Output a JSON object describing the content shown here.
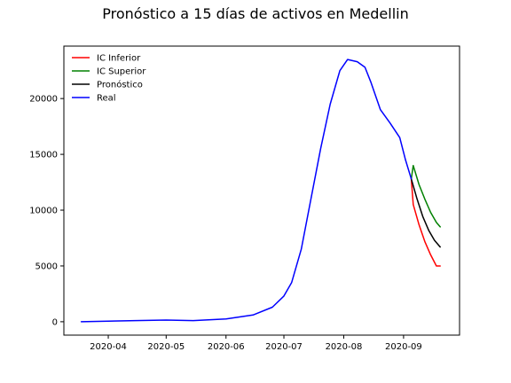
{
  "chart_data": {
    "type": "line",
    "title": "Pronóstico a 15 días de activos en Medellin",
    "xlabel": "",
    "ylabel": "",
    "x_ticks": [
      "2020-04",
      "2020-05",
      "2020-06",
      "2020-07",
      "2020-08",
      "2020-09"
    ],
    "y_ticks": [
      0,
      5000,
      10000,
      15000,
      20000
    ],
    "xlim": [
      "2020-03-09",
      "2020-09-30"
    ],
    "ylim": [
      -1200,
      24700
    ],
    "grid": false,
    "legend_position": "top-left",
    "series": [
      {
        "name": "IC Inferior",
        "color": "#ff0000",
        "points": [
          [
            "2020-09-05",
            12800
          ],
          [
            "2020-09-06",
            10500
          ],
          [
            "2020-09-09",
            8700
          ],
          [
            "2020-09-12",
            7200
          ],
          [
            "2020-09-15",
            6000
          ],
          [
            "2020-09-18",
            5000
          ],
          [
            "2020-09-20",
            5000
          ]
        ]
      },
      {
        "name": "IC Superior",
        "color": "#008000",
        "points": [
          [
            "2020-09-05",
            12800
          ],
          [
            "2020-09-06",
            14000
          ],
          [
            "2020-09-09",
            12300
          ],
          [
            "2020-09-12",
            11000
          ],
          [
            "2020-09-15",
            9800
          ],
          [
            "2020-09-18",
            8900
          ],
          [
            "2020-09-20",
            8500
          ]
        ]
      },
      {
        "name": "Pronóstico",
        "color": "#000000",
        "points": [
          [
            "2020-09-05",
            12800
          ],
          [
            "2020-09-08",
            11000
          ],
          [
            "2020-09-11",
            9400
          ],
          [
            "2020-09-14",
            8200
          ],
          [
            "2020-09-17",
            7300
          ],
          [
            "2020-09-20",
            6700
          ]
        ]
      },
      {
        "name": "Real",
        "color": "#0000ff",
        "points": [
          [
            "2020-03-18",
            0
          ],
          [
            "2020-04-01",
            50
          ],
          [
            "2020-04-15",
            100
          ],
          [
            "2020-05-01",
            150
          ],
          [
            "2020-05-15",
            100
          ],
          [
            "2020-06-01",
            250
          ],
          [
            "2020-06-15",
            600
          ],
          [
            "2020-06-25",
            1300
          ],
          [
            "2020-07-01",
            2300
          ],
          [
            "2020-07-05",
            3500
          ],
          [
            "2020-07-10",
            6500
          ],
          [
            "2020-07-15",
            11000
          ],
          [
            "2020-07-20",
            15500
          ],
          [
            "2020-07-25",
            19500
          ],
          [
            "2020-07-30",
            22500
          ],
          [
            "2020-08-03",
            23500
          ],
          [
            "2020-08-08",
            23300
          ],
          [
            "2020-08-12",
            22800
          ],
          [
            "2020-08-15",
            21500
          ],
          [
            "2020-08-20",
            19000
          ],
          [
            "2020-08-25",
            17800
          ],
          [
            "2020-08-30",
            16500
          ],
          [
            "2020-09-02",
            14500
          ],
          [
            "2020-09-05",
            12800
          ]
        ]
      }
    ]
  }
}
